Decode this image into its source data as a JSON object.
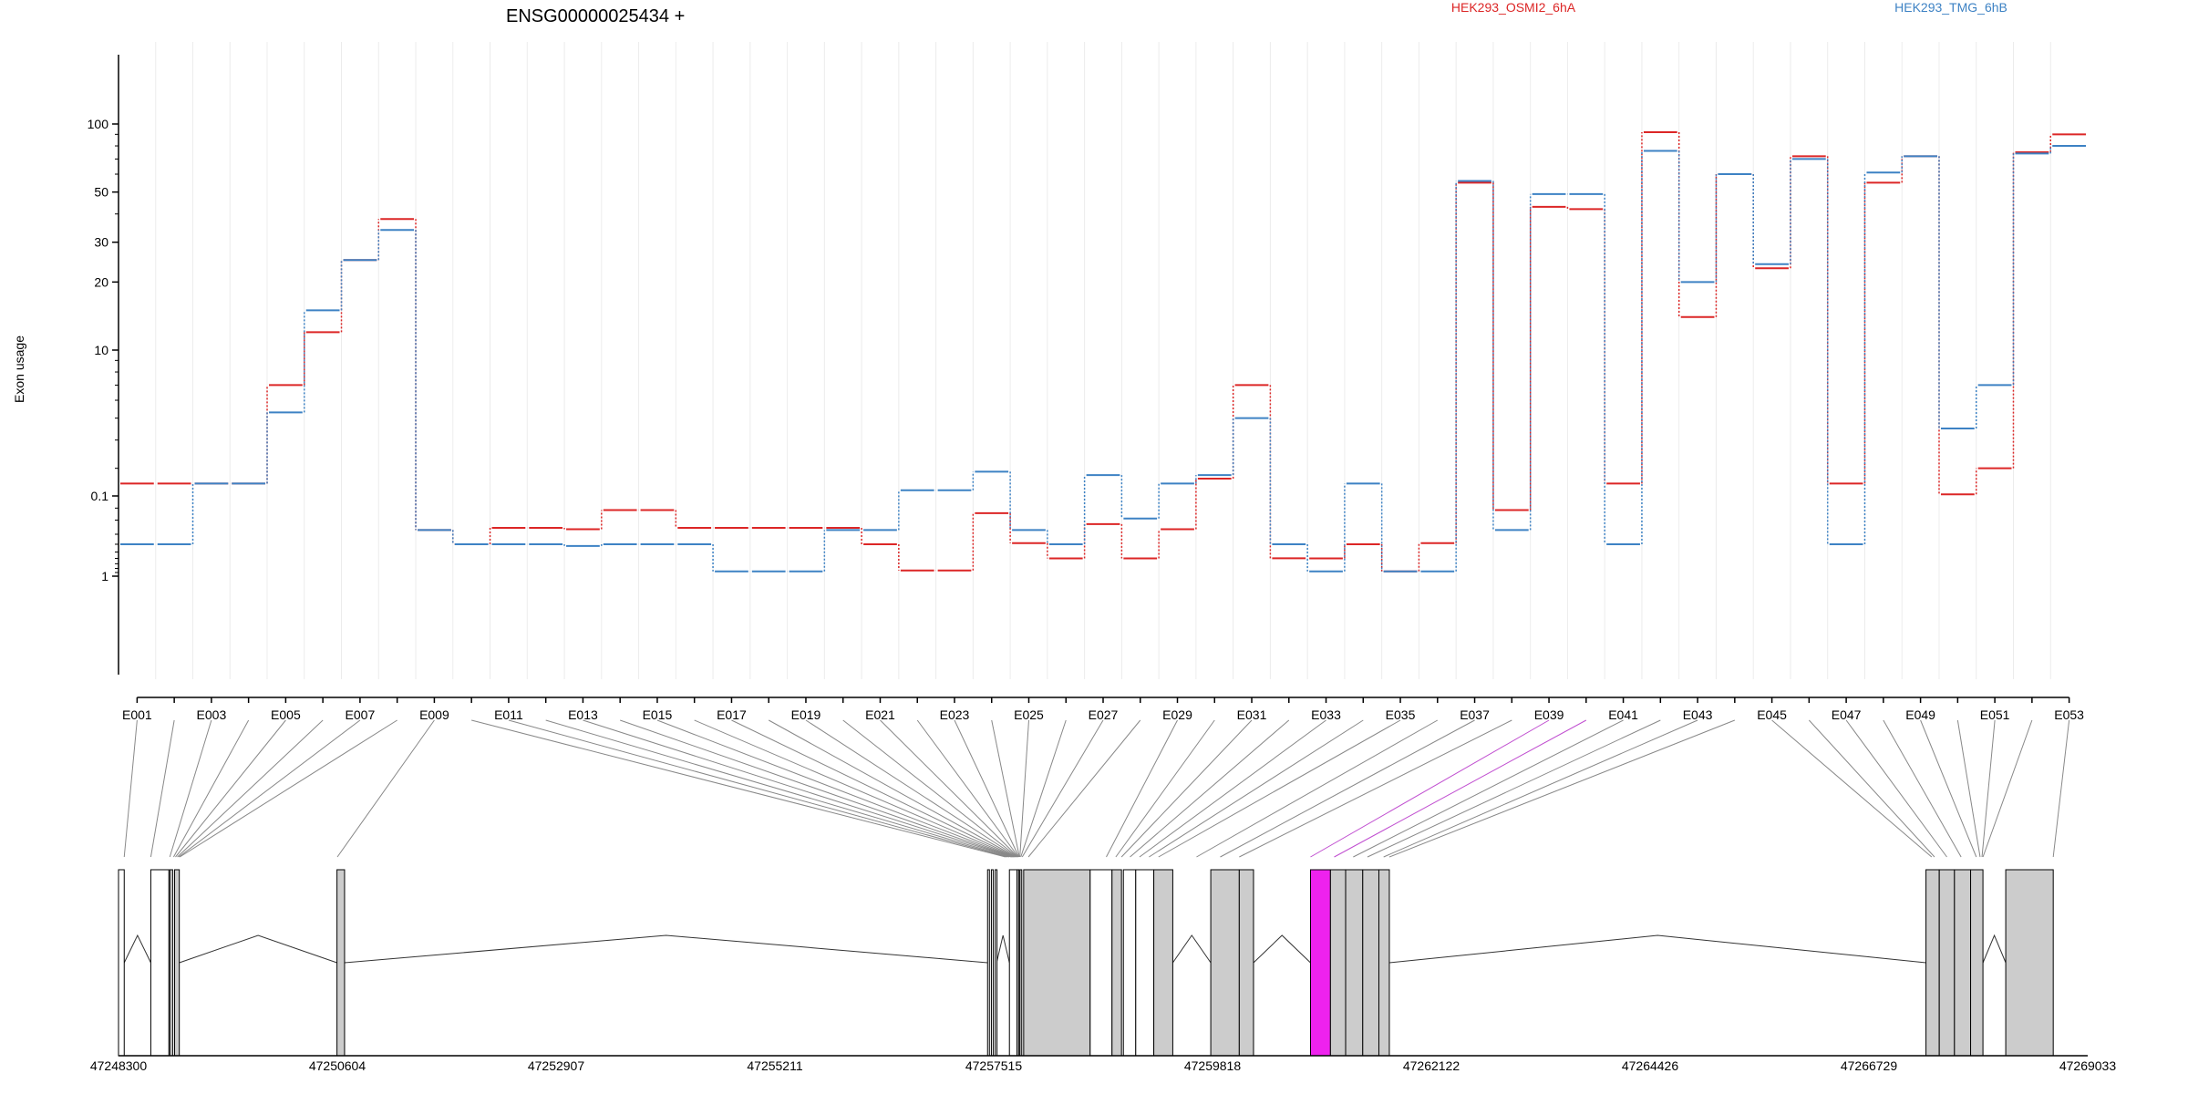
{
  "chart_data": {
    "type": "line",
    "title": "ENSG00000025434 +",
    "ylabel": "Exon usage",
    "y_scale": "log",
    "y_ticks": [
      "100",
      "50",
      "30",
      "20",
      "10",
      "1",
      "0.1"
    ],
    "categories": [
      "E001",
      "E002",
      "E003",
      "E004",
      "E005",
      "E006",
      "E007",
      "E008",
      "E009",
      "E010",
      "E011",
      "E012",
      "E013",
      "E014",
      "E015",
      "E016",
      "E017",
      "E018",
      "E019",
      "E020",
      "E021",
      "E022",
      "E023",
      "E024",
      "E025",
      "E026",
      "E027",
      "E028",
      "E029",
      "E030",
      "E031",
      "E032",
      "E033",
      "E034",
      "E035",
      "E036",
      "E037",
      "E038",
      "E039",
      "E040",
      "E041",
      "E042",
      "E043",
      "E044",
      "E045",
      "E046",
      "E047",
      "E048",
      "E049",
      "E050",
      "E051",
      "E052",
      "E053"
    ],
    "x_tick_labels": [
      "E001",
      "E003",
      "E005",
      "E007",
      "E009",
      "E011",
      "E013",
      "E015",
      "E017",
      "E019",
      "E021",
      "E023",
      "E025",
      "E027",
      "E029",
      "E031",
      "E033",
      "E035",
      "E037",
      "E039",
      "E041",
      "E043",
      "E045",
      "E047",
      "E049",
      "E051",
      "E053"
    ],
    "series": [
      {
        "name": "HEK293_OSMI2_6hA",
        "color": "#dc2626",
        "values": [
          0.07,
          0.07,
          0.07,
          0.07,
          7,
          12,
          25,
          38,
          1.6,
          0.4,
          0.25,
          0.25,
          0.26,
          0.15,
          0.15,
          0.25,
          0.25,
          0.25,
          0.25,
          0.25,
          0.4,
          0.85,
          0.85,
          1.9,
          1.4,
          0.6,
          1.7,
          0.6,
          0.26,
          2.7,
          7,
          1.2,
          0.6,
          0.4,
          1.05,
          1.4,
          55,
          0.15,
          43,
          42,
          0.07,
          92,
          14,
          60,
          23,
          72,
          0.07,
          55,
          72,
          2.3,
          3,
          75,
          90
        ]
      },
      {
        "name": "HEK293_TMG_6hB",
        "color": "#3d82c4",
        "values": [
          0.4,
          0.4,
          0.07,
          0.07,
          5.3,
          15,
          25,
          34,
          1.6,
          0.4,
          0.4,
          0.4,
          0.42,
          0.4,
          0.4,
          0.4,
          1.05,
          1.05,
          1.05,
          1.6,
          1.6,
          2.4,
          2.4,
          2.9,
          1.6,
          0.4,
          2.8,
          1.8,
          0.07,
          2.8,
          5,
          0.4,
          1.05,
          0.07,
          1.05,
          1.05,
          56,
          1.6,
          49,
          49,
          0.4,
          76,
          20,
          60,
          24,
          70,
          0.4,
          61,
          72,
          4.5,
          7,
          74,
          80
        ]
      }
    ],
    "genomic_axis_labels": [
      "47248300",
      "47250604",
      "47252907",
      "47255211",
      "47257515",
      "47259818",
      "47262122",
      "47264426",
      "47266729",
      "47269033"
    ],
    "gene_model": {
      "genomic_range": [
        47248300,
        47269033
      ],
      "exons": [
        {
          "start": 47248300,
          "end": 47248360,
          "fill": "white"
        },
        {
          "start": 47248640,
          "end": 47248830,
          "fill": "white"
        },
        {
          "start": 47248840,
          "end": 47248870,
          "fill": "#cccccc"
        },
        {
          "start": 47248890,
          "end": 47248940,
          "fill": "#cccccc"
        },
        {
          "start": 47250600,
          "end": 47250680,
          "fill": "#cccccc"
        },
        {
          "start": 47257450,
          "end": 47257460,
          "fill": "white"
        },
        {
          "start": 47257490,
          "end": 47257500,
          "fill": "white"
        },
        {
          "start": 47257530,
          "end": 47257545,
          "fill": "white"
        },
        {
          "start": 47257680,
          "end": 47257760,
          "fill": "white"
        },
        {
          "start": 47257760,
          "end": 47257780,
          "fill": "#cccccc"
        },
        {
          "start": 47257790,
          "end": 47257810,
          "fill": "#cccccc"
        },
        {
          "start": 47257830,
          "end": 47258530,
          "fill": "#cccccc"
        },
        {
          "start": 47258530,
          "end": 47258760,
          "fill": "white"
        },
        {
          "start": 47258760,
          "end": 47258860,
          "fill": "#cccccc"
        },
        {
          "start": 47258880,
          "end": 47259010,
          "fill": "white"
        },
        {
          "start": 47259010,
          "end": 47259200,
          "fill": "white"
        },
        {
          "start": 47259200,
          "end": 47259400,
          "fill": "#cccccc"
        },
        {
          "start": 47259800,
          "end": 47260100,
          "fill": "#cccccc"
        },
        {
          "start": 47260100,
          "end": 47260250,
          "fill": "#cccccc"
        },
        {
          "start": 47260850,
          "end": 47261060,
          "fill": "#ee22ee"
        },
        {
          "start": 47261060,
          "end": 47261220,
          "fill": "#cccccc"
        },
        {
          "start": 47261220,
          "end": 47261400,
          "fill": "#cccccc"
        },
        {
          "start": 47261400,
          "end": 47261570,
          "fill": "#cccccc"
        },
        {
          "start": 47261570,
          "end": 47261680,
          "fill": "#cccccc"
        },
        {
          "start": 47267330,
          "end": 47267470,
          "fill": "#cccccc"
        },
        {
          "start": 47267470,
          "end": 47267630,
          "fill": "#cccccc"
        },
        {
          "start": 47267630,
          "end": 47267800,
          "fill": "#cccccc"
        },
        {
          "start": 47267800,
          "end": 47267930,
          "fill": "#cccccc"
        },
        {
          "start": 47268170,
          "end": 47268670,
          "fill": "#cccccc"
        }
      ],
      "introns": [
        [
          47248360,
          47248640
        ],
        [
          47248940,
          47250600
        ],
        [
          47250680,
          47257450
        ],
        [
          47257545,
          47257680
        ],
        [
          47259400,
          47259800
        ],
        [
          47260250,
          47260850
        ],
        [
          47261680,
          47267330
        ],
        [
          47267930,
          47268170
        ]
      ],
      "connector_targets": [
        47248360,
        47248640,
        47248840,
        47248880,
        47248900,
        47248920,
        47248935,
        47248945,
        47250604,
        47257640,
        47257660,
        47257680,
        47257700,
        47257710,
        47257720,
        47257730,
        47257740,
        47257750,
        47257760,
        47257765,
        47257770,
        47257775,
        47257780,
        47257785,
        47257790,
        47257800,
        47257815,
        47257880,
        47258700,
        47258800,
        47258860,
        47258950,
        47259050,
        47259150,
        47259250,
        47259650,
        47259900,
        47260100,
        47260850,
        47261100,
        47261300,
        47261450,
        47261620,
        47261680,
        47267390,
        47267420,
        47267550,
        47267700,
        47267860,
        47267900,
        47267920,
        47267930,
        47268670
      ]
    }
  }
}
